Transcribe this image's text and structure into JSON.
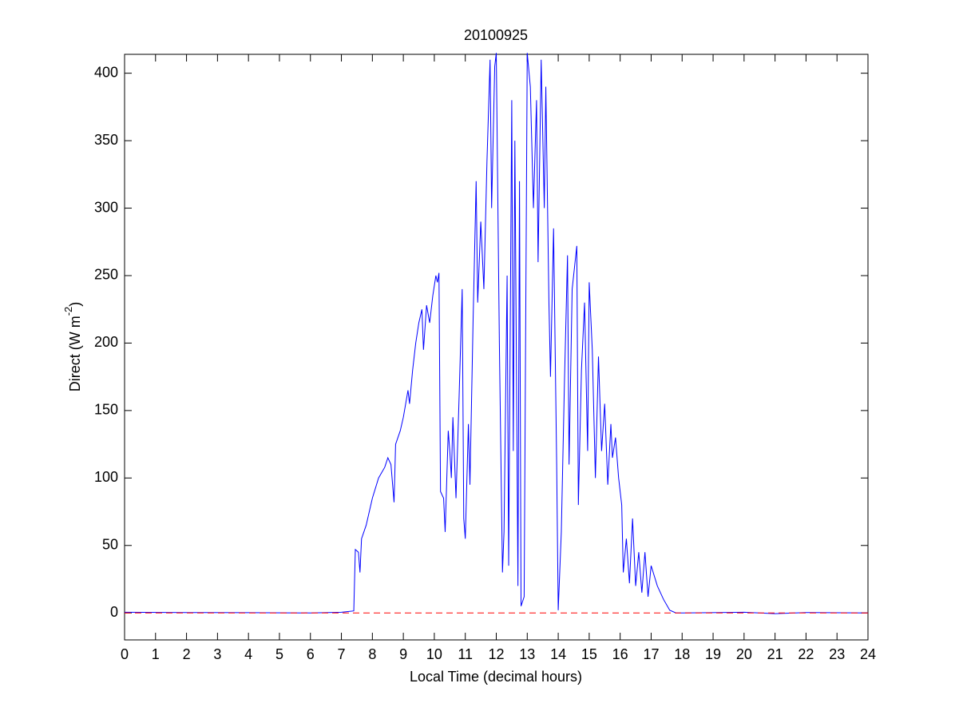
{
  "chart_data": {
    "type": "line",
    "title": "20100925",
    "xlabel": "Local Time (decimal hours)",
    "ylabel": [
      "Direct (W m",
      "-2",
      ")"
    ],
    "xlim": [
      0,
      24
    ],
    "xticks": [
      0,
      1,
      2,
      3,
      4,
      5,
      6,
      7,
      8,
      9,
      10,
      11,
      12,
      13,
      14,
      15,
      16,
      17,
      18,
      19,
      20,
      21,
      22,
      23,
      24
    ],
    "ylim": [
      -20,
      414
    ],
    "yticks": [
      0,
      50,
      100,
      150,
      200,
      250,
      300,
      350,
      400
    ],
    "grid": false,
    "series": [
      {
        "color": "#0000ff",
        "dash": false,
        "x": [
          0,
          2,
          4,
          6,
          7,
          7.4,
          7.45,
          7.55,
          7.6,
          7.65,
          7.8,
          8.0,
          8.2,
          8.4,
          8.5,
          8.6,
          8.7,
          8.75,
          8.9,
          9.0,
          9.15,
          9.2,
          9.3,
          9.4,
          9.5,
          9.6,
          9.65,
          9.75,
          9.85,
          9.95,
          10.05,
          10.1,
          10.15,
          10.2,
          10.3,
          10.35,
          10.45,
          10.5,
          10.55,
          10.6,
          10.7,
          10.8,
          10.9,
          10.95,
          11.0,
          11.1,
          11.15,
          11.25,
          11.35,
          11.4,
          11.5,
          11.6,
          11.7,
          11.8,
          11.85,
          11.95,
          12.0,
          12.1,
          12.2,
          12.25,
          12.35,
          12.4,
          12.5,
          12.55,
          12.6,
          12.7,
          12.75,
          12.8,
          12.9,
          13.0,
          13.1,
          13.2,
          13.3,
          13.35,
          13.45,
          13.55,
          13.6,
          13.7,
          13.75,
          13.85,
          13.95,
          14.0,
          14.1,
          14.2,
          14.3,
          14.35,
          14.45,
          14.6,
          14.65,
          14.75,
          14.85,
          14.95,
          15.0,
          15.1,
          15.2,
          15.3,
          15.4,
          15.5,
          15.6,
          15.7,
          15.75,
          15.85,
          15.95,
          16.05,
          16.1,
          16.2,
          16.3,
          16.4,
          16.5,
          16.6,
          16.7,
          16.8,
          16.9,
          17.0,
          17.2,
          17.4,
          17.6,
          17.8,
          18,
          20,
          21,
          22,
          24
        ],
        "values": [
          0.5,
          0.3,
          0.2,
          0,
          0.5,
          1.5,
          47,
          45,
          30,
          55,
          65,
          85,
          100,
          108,
          115,
          110,
          82,
          125,
          135,
          145,
          165,
          155,
          180,
          200,
          215,
          225,
          195,
          228,
          215,
          235,
          250,
          245,
          252,
          90,
          85,
          60,
          135,
          120,
          100,
          145,
          85,
          160,
          240,
          70,
          55,
          140,
          95,
          215,
          320,
          230,
          290,
          240,
          335,
          410,
          300,
          405,
          415,
          200,
          30,
          60,
          250,
          35,
          380,
          120,
          350,
          20,
          320,
          5,
          12,
          415,
          390,
          300,
          380,
          260,
          410,
          300,
          390,
          230,
          175,
          285,
          110,
          2,
          60,
          170,
          265,
          110,
          240,
          272,
          80,
          180,
          230,
          120,
          245,
          195,
          100,
          190,
          120,
          155,
          95,
          140,
          115,
          130,
          100,
          80,
          30,
          55,
          22,
          70,
          20,
          45,
          15,
          45,
          12,
          35,
          20,
          10,
          2,
          0,
          0,
          0.5,
          -0.5,
          0.3,
          0
        ]
      },
      {
        "color": "#ff0000",
        "dash": true,
        "x": [
          0,
          24
        ],
        "values": [
          0,
          0
        ]
      }
    ]
  }
}
